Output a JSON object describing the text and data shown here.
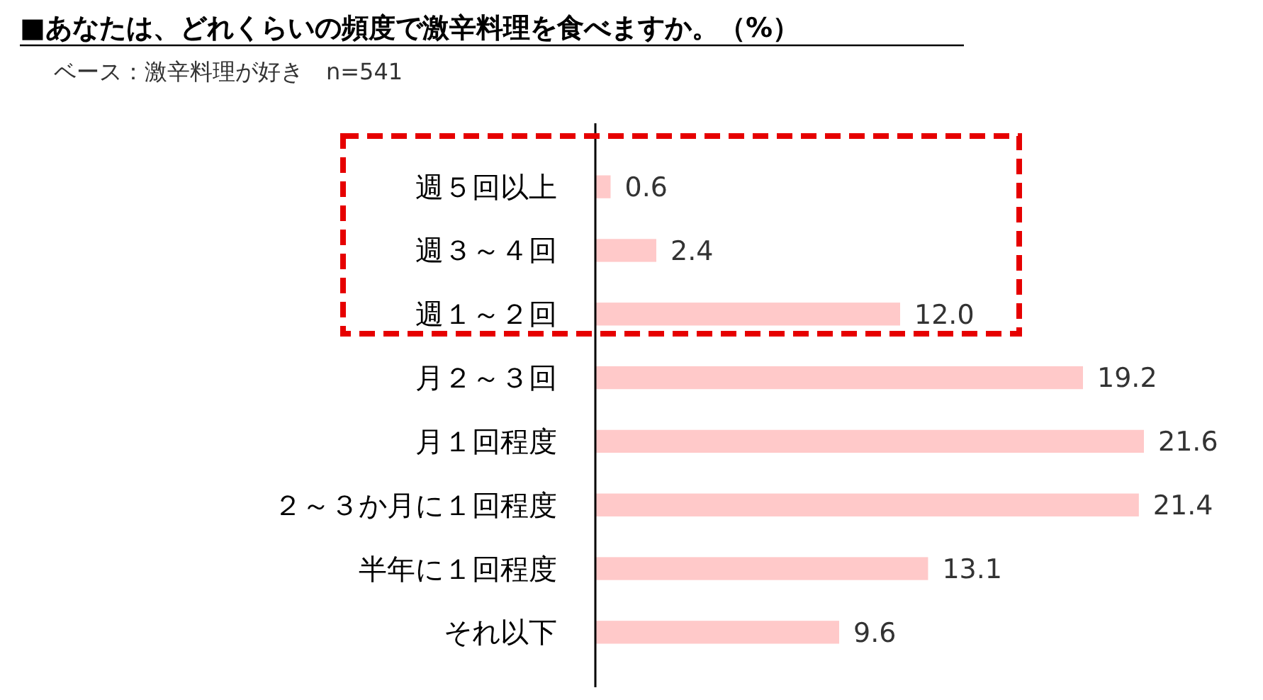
{
  "chart_data": {
    "type": "bar",
    "orientation": "horizontal",
    "title": "■あなたは、どれくらいの頻度で激辛料理を食べますか。（%）",
    "subtitle": "ベース：激辛料理が好き　n=541",
    "categories": [
      "週５回以上",
      "週３～４回",
      "週１～２回",
      "月２～３回",
      "月１回程度",
      "２～３か月に１回程度",
      "半年に１回程度",
      "それ以下"
    ],
    "values": [
      0.6,
      2.4,
      12.0,
      19.2,
      21.6,
      21.4,
      13.1,
      9.6
    ],
    "value_labels": [
      "0.6",
      "2.4",
      "12.0",
      "19.2",
      "21.6",
      "21.4",
      "13.1",
      "9.6"
    ],
    "color": "#ffc9c9"
  }
}
